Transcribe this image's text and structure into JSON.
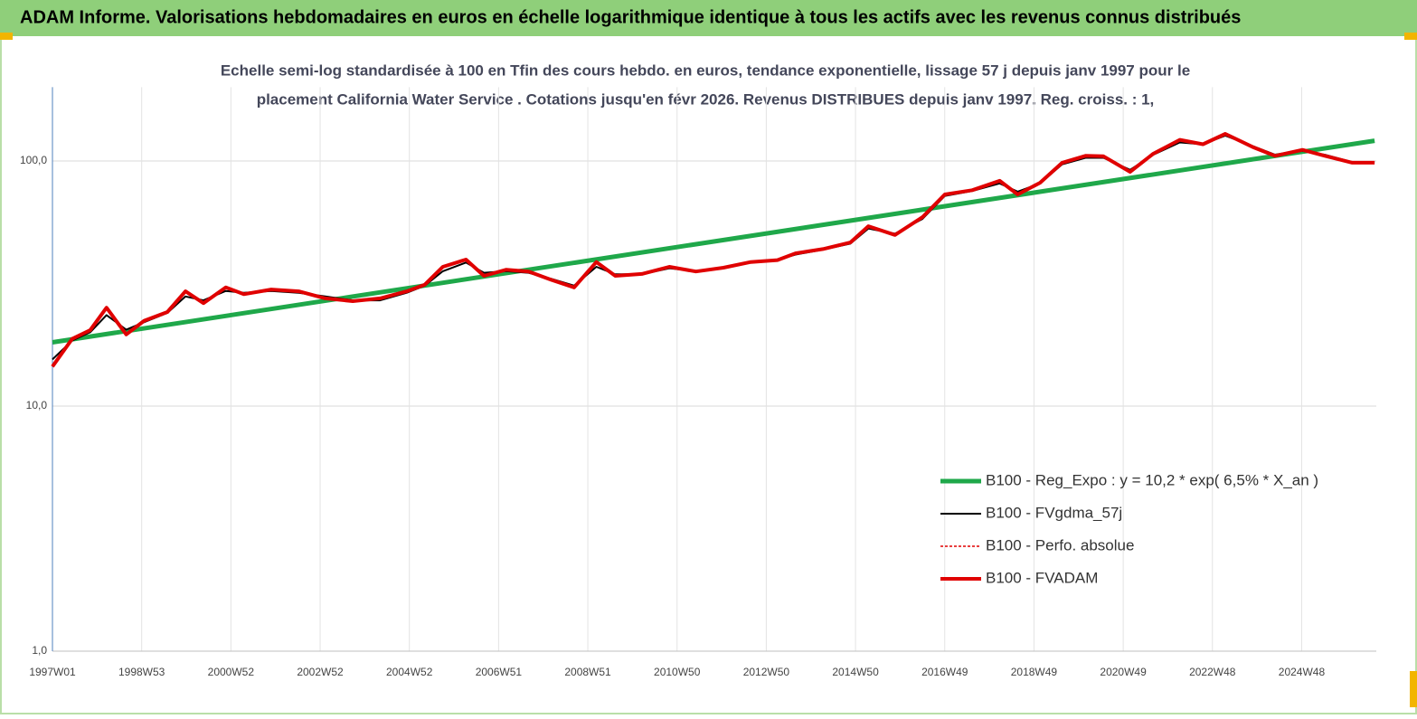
{
  "chart_data": {
    "type": "line",
    "title": "ADAM Informe. Valorisations hebdomadaires en euros en échelle logarithmique identique à tous les actifs avec les revenus connus distribués",
    "subtitle": [
      "Echelle semi-log standardisée à 100 en Tfin des cours hebdo. en euros, tendance exponentielle, lissage 57 j depuis janv 1997 pour le",
      "placement California Water Service . Cotations jusqu'en févr 2026. Revenus DISTRIBUES depuis janv 1997. Reg. croiss. : 1,"
    ],
    "log_y": true,
    "grid": true,
    "xlim": [
      0,
      1543
    ],
    "xticks": [
      {
        "value": 0,
        "label": "1997W01"
      },
      {
        "value": 104,
        "label": "1998W53"
      },
      {
        "value": 208,
        "label": "2000W52"
      },
      {
        "value": 312,
        "label": "2002W52"
      },
      {
        "value": 416,
        "label": "2004W52"
      },
      {
        "value": 520,
        "label": "2006W51"
      },
      {
        "value": 624,
        "label": "2008W51"
      },
      {
        "value": 728,
        "label": "2010W50"
      },
      {
        "value": 832,
        "label": "2012W50"
      },
      {
        "value": 936,
        "label": "2014W50"
      },
      {
        "value": 1040,
        "label": "2016W49"
      },
      {
        "value": 1144,
        "label": "2018W49"
      },
      {
        "value": 1248,
        "label": "2020W49"
      },
      {
        "value": 1352,
        "label": "2022W48"
      },
      {
        "value": 1456,
        "label": "2024W48"
      }
    ],
    "ylim": [
      1,
      200
    ],
    "yticks": [
      {
        "value": 1,
        "label": "1,0"
      },
      {
        "value": 10,
        "label": "10,0"
      },
      {
        "value": 100,
        "label": "100,0"
      }
    ],
    "series": [
      {
        "name": "B100 - Reg_Expo : y = 10,2 *  exp( 6,5% *  X_an )",
        "color": "#1fa84a",
        "width": 5,
        "dash": "",
        "x": [
          0,
          1541
        ],
        "values": [
          18.2,
          121
        ]
      },
      {
        "name": "B100 - FVgdma_57j",
        "color": "#000000",
        "width": 2,
        "dash": "",
        "x": [
          0,
          23,
          44,
          63,
          86,
          107,
          134,
          155,
          176,
          202,
          223,
          255,
          287,
          318,
          350,
          382,
          413,
          434,
          455,
          482,
          503,
          529,
          555,
          582,
          608,
          634,
          656,
          687,
          719,
          750,
          782,
          814,
          845,
          866,
          898,
          930,
          951,
          982,
          1014,
          1040,
          1072,
          1104,
          1125,
          1151,
          1177,
          1204,
          1225,
          1256,
          1283,
          1314,
          1341,
          1367,
          1399,
          1425,
          1457,
          1483,
          1515,
          1541
        ],
        "values": [
          15.5,
          18.5,
          20,
          23.5,
          20.5,
          22,
          24,
          28,
          27,
          29.5,
          29,
          29.5,
          29,
          28,
          27,
          27,
          29,
          31,
          35.5,
          38.5,
          35,
          35.5,
          35,
          33,
          31,
          37,
          34.5,
          34.5,
          36.5,
          35.5,
          36.5,
          38.5,
          39.5,
          41.5,
          43.5,
          46,
          53,
          50.5,
          58,
          72,
          75.5,
          81,
          75,
          81,
          97,
          103,
          103,
          92,
          106,
          119,
          117,
          127,
          115,
          106,
          110,
          106,
          99,
          99
        ]
      },
      {
        "name": "B100 - Perfo. absolue",
        "color": "#e00000",
        "width": 1.5,
        "dash": "3 2",
        "x": [
          0,
          23,
          44,
          63,
          86,
          107,
          134,
          155,
          176,
          202,
          223,
          255,
          287,
          318,
          350,
          382,
          413,
          434,
          455,
          482,
          503,
          529,
          555,
          582,
          608,
          634,
          656,
          687,
          719,
          750,
          782,
          814,
          845,
          866,
          898,
          930,
          951,
          982,
          1014,
          1040,
          1072,
          1104,
          1125,
          1151,
          1177,
          1204,
          1225,
          1256,
          1283,
          1314,
          1341,
          1367,
          1399,
          1425,
          1457,
          1483,
          1515,
          1541
        ],
        "values": [
          14.5,
          18.8,
          20.4,
          25.2,
          19.6,
          22.3,
          24.2,
          29.4,
          26.3,
          30.5,
          28.6,
          29.9,
          29.4,
          27.5,
          26.8,
          27.5,
          29.4,
          31.3,
          37,
          39.6,
          34,
          36,
          35.4,
          32.7,
          30.5,
          38.7,
          34,
          34.6,
          37,
          35.4,
          36.7,
          38.7,
          39.4,
          42,
          43.7,
          46.5,
          54.2,
          49.9,
          59,
          73,
          76,
          83,
          73,
          81.5,
          98.4,
          105,
          104.5,
          90.3,
          107,
          122,
          117,
          129,
          114,
          105,
          111,
          105,
          98.4,
          98.4
        ]
      },
      {
        "name": "B100 - FVADAM",
        "color": "#e00000",
        "width": 4,
        "dash": "",
        "x": [
          0,
          23,
          44,
          63,
          86,
          107,
          134,
          155,
          176,
          202,
          223,
          255,
          287,
          318,
          350,
          382,
          413,
          434,
          455,
          482,
          503,
          529,
          555,
          582,
          608,
          634,
          656,
          687,
          719,
          750,
          782,
          814,
          845,
          866,
          898,
          930,
          951,
          982,
          1014,
          1040,
          1072,
          1104,
          1125,
          1151,
          1177,
          1204,
          1225,
          1256,
          1283,
          1314,
          1341,
          1367,
          1399,
          1425,
          1457,
          1483,
          1515,
          1541
        ],
        "values": [
          14.5,
          18.8,
          20.4,
          25.2,
          19.6,
          22.3,
          24.2,
          29.4,
          26.3,
          30.5,
          28.6,
          29.9,
          29.4,
          27.5,
          26.8,
          27.5,
          29.4,
          31.3,
          37,
          39.6,
          34,
          36,
          35.4,
          32.7,
          30.5,
          38.7,
          34,
          34.6,
          37,
          35.4,
          36.7,
          38.7,
          39.4,
          42,
          43.7,
          46.5,
          54.2,
          49.9,
          59,
          73,
          76,
          83,
          73,
          81.5,
          98.4,
          105,
          104.5,
          90.3,
          107,
          122,
          117,
          129,
          114,
          105,
          111,
          105,
          98.4,
          98.4
        ]
      }
    ]
  }
}
